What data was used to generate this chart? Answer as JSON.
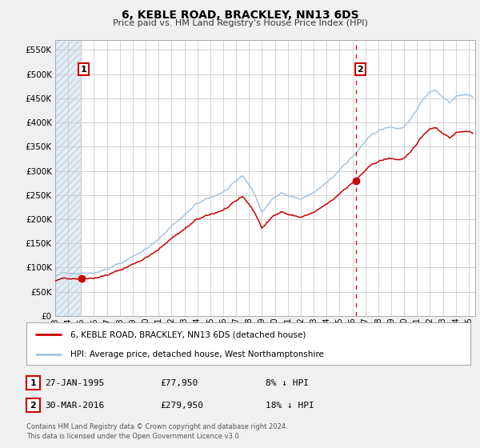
{
  "title": "6, KEBLE ROAD, BRACKLEY, NN13 6DS",
  "subtitle": "Price paid vs. HM Land Registry's House Price Index (HPI)",
  "bg_color": "#f0f0f0",
  "plot_bg_color": "#ffffff",
  "hatch_color": "#d8e4f0",
  "grid_color": "#cccccc",
  "hpi_color": "#a8c4de",
  "price_color": "#cc0000",
  "dashed_line_color": "#cc0000",
  "ylabel_values": [
    0,
    50000,
    100000,
    150000,
    200000,
    250000,
    300000,
    350000,
    400000,
    450000,
    500000,
    550000
  ],
  "ylim": [
    0,
    570000
  ],
  "xlim_start": 1993.0,
  "xlim_end": 2025.5,
  "hatch_end": 1995.07,
  "transaction1_x": 1995.07,
  "transaction1_y": 77950,
  "transaction2_x": 2016.25,
  "transaction2_y": 279950,
  "annotation1_label": "1",
  "annotation2_label": "2",
  "vline_x": 2016.25,
  "legend_line1": "6, KEBLE ROAD, BRACKLEY, NN13 6DS (detached house)",
  "legend_line2": "HPI: Average price, detached house, West Northamptonshire",
  "table_row1": [
    "1",
    "27-JAN-1995",
    "£77,950",
    "8% ↓ HPI"
  ],
  "table_row2": [
    "2",
    "30-MAR-2016",
    "£279,950",
    "18% ↓ HPI"
  ],
  "footnote1": "Contains HM Land Registry data © Crown copyright and database right 2024.",
  "footnote2": "This data is licensed under the Open Government Licence v3.0.",
  "hpi_base_points": [
    [
      1993.0,
      82000
    ],
    [
      1994.0,
      88000
    ],
    [
      1995.0,
      92000
    ],
    [
      1996.0,
      97000
    ],
    [
      1997.0,
      105000
    ],
    [
      1998.0,
      115000
    ],
    [
      1999.0,
      130000
    ],
    [
      2000.0,
      148000
    ],
    [
      2001.0,
      165000
    ],
    [
      2002.0,
      195000
    ],
    [
      2003.0,
      218000
    ],
    [
      2004.0,
      240000
    ],
    [
      2005.0,
      248000
    ],
    [
      2006.0,
      262000
    ],
    [
      2007.0,
      278000
    ],
    [
      2007.5,
      290000
    ],
    [
      2008.0,
      272000
    ],
    [
      2008.5,
      248000
    ],
    [
      2009.0,
      215000
    ],
    [
      2009.5,
      230000
    ],
    [
      2010.0,
      248000
    ],
    [
      2010.5,
      258000
    ],
    [
      2011.0,
      252000
    ],
    [
      2011.5,
      248000
    ],
    [
      2012.0,
      245000
    ],
    [
      2012.5,
      250000
    ],
    [
      2013.0,
      255000
    ],
    [
      2013.5,
      262000
    ],
    [
      2014.0,
      272000
    ],
    [
      2014.5,
      282000
    ],
    [
      2015.0,
      298000
    ],
    [
      2015.5,
      315000
    ],
    [
      2016.0,
      328000
    ],
    [
      2016.5,
      342000
    ],
    [
      2017.0,
      358000
    ],
    [
      2017.5,
      368000
    ],
    [
      2018.0,
      378000
    ],
    [
      2018.5,
      382000
    ],
    [
      2019.0,
      385000
    ],
    [
      2019.5,
      382000
    ],
    [
      2020.0,
      385000
    ],
    [
      2020.5,
      395000
    ],
    [
      2021.0,
      418000
    ],
    [
      2021.5,
      440000
    ],
    [
      2022.0,
      458000
    ],
    [
      2022.5,
      462000
    ],
    [
      2023.0,
      448000
    ],
    [
      2023.5,
      440000
    ],
    [
      2024.0,
      448000
    ],
    [
      2024.5,
      455000
    ],
    [
      2025.0,
      452000
    ],
    [
      2025.3,
      450000
    ]
  ]
}
